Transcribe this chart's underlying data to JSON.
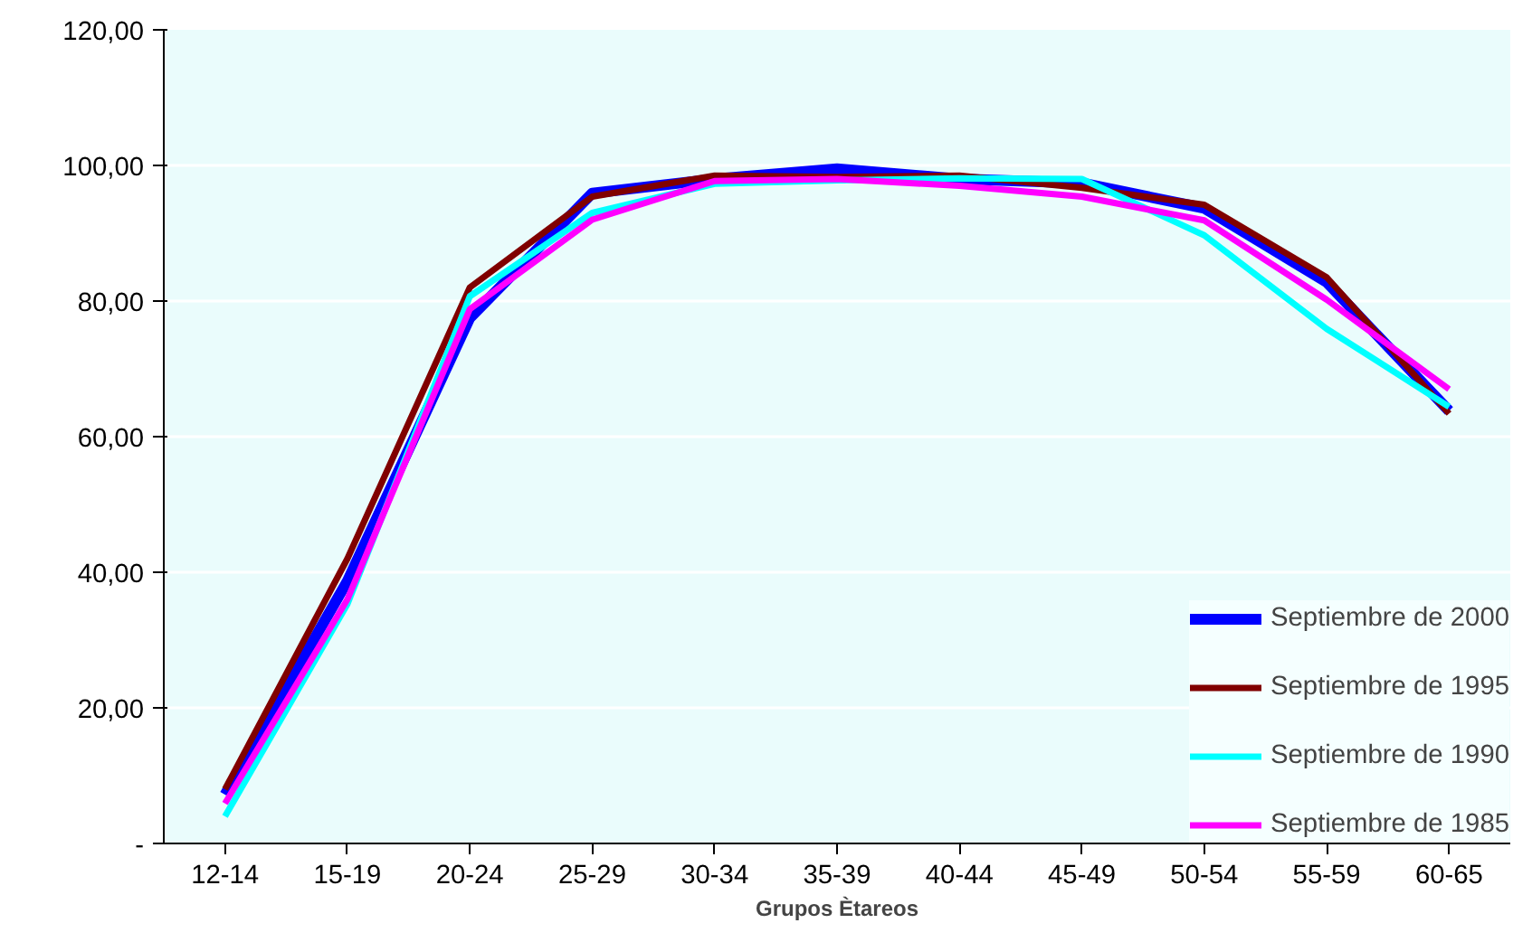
{
  "chart_data": {
    "type": "line",
    "xlabel": "Grupos Ètareos",
    "categories": [
      "12-14",
      "15-19",
      "20-24",
      "25-29",
      "30-34",
      "35-39",
      "40-44",
      "45-49",
      "50-54",
      "55-59",
      "60-65"
    ],
    "series": [
      {
        "name": "Septiembre de 2000",
        "color": "#0000ff",
        "values": [
          7.2,
          38.7,
          77.5,
          95.9,
          98.0,
          99.5,
          98.0,
          97.4,
          93.7,
          82.8,
          63.8
        ]
      },
      {
        "name": "Septiembre de 1995",
        "color": "#800000",
        "values": [
          8.0,
          42.0,
          82.0,
          95.4,
          98.5,
          98.3,
          98.5,
          96.7,
          94.2,
          83.5,
          63.4
        ]
      },
      {
        "name": "Septiembre de 1990",
        "color": "#00ffff",
        "values": [
          4.0,
          35.3,
          80.7,
          93.0,
          97.3,
          97.8,
          98.1,
          98.0,
          89.7,
          75.9,
          64.4
        ]
      },
      {
        "name": "Septiembre de 1985",
        "color": "#ff00ff",
        "values": [
          5.9,
          36.0,
          78.8,
          92.0,
          97.7,
          98.0,
          97.0,
          95.4,
          91.9,
          80.2,
          67.0
        ]
      }
    ],
    "ylim": [
      0,
      120
    ],
    "yticks": [
      {
        "value": 0,
        "label": "-"
      },
      {
        "value": 20,
        "label": "20,00"
      },
      {
        "value": 40,
        "label": "40,00"
      },
      {
        "value": 60,
        "label": "60,00"
      },
      {
        "value": 80,
        "label": "80,00"
      },
      {
        "value": 100,
        "label": "100,00"
      },
      {
        "value": 120,
        "label": "120,00"
      }
    ],
    "grid": "y",
    "legend": "bottom right",
    "marker": "none",
    "line_style": "solid"
  }
}
